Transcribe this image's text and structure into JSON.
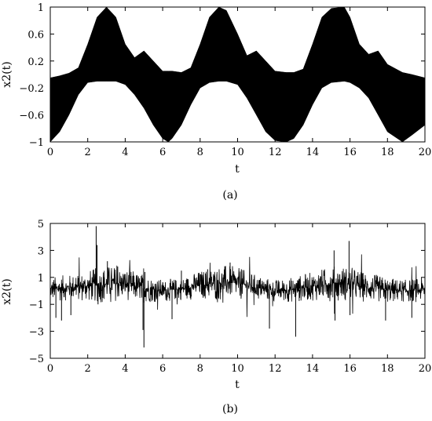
{
  "chart_data": [
    {
      "type": "line",
      "caption": "(a)",
      "xlabel": "t",
      "ylabel": "x2(t)",
      "xlim": [
        0,
        20
      ],
      "ylim": [
        -1,
        1
      ],
      "xticks": [
        0,
        2,
        4,
        6,
        8,
        10,
        12,
        14,
        16,
        18,
        20
      ],
      "yticks": [
        1,
        0.6,
        0.2,
        -0.2,
        -0.6,
        -1
      ],
      "ytick_labels": [
        "1",
        "0.6",
        "0.2",
        "−0.2",
        "−0.6",
        "−1"
      ],
      "grid": false,
      "color": "#000000",
      "signal": {
        "description_type": "dense oscillation filling envelope",
        "envelope_t": [
          0,
          0.5,
          1.0,
          1.5,
          2.0,
          2.5,
          3.0,
          3.5,
          4.0,
          4.5,
          5.0,
          5.5,
          6.0,
          6.3,
          6.5,
          7.0,
          7.5,
          8.0,
          8.5,
          9.0,
          9.4,
          10.0,
          10.5,
          11.0,
          11.5,
          12.0,
          12.6,
          13.0,
          13.5,
          14.0,
          14.5,
          15.0,
          15.7,
          16.0,
          16.5,
          17.0,
          17.5,
          18.0,
          18.8,
          19.3,
          20.0
        ],
        "envelope_upper": [
          -0.05,
          -0.02,
          0.02,
          0.1,
          0.45,
          0.85,
          1.0,
          0.85,
          0.45,
          0.25,
          0.35,
          0.2,
          0.05,
          0.05,
          0.05,
          0.03,
          0.1,
          0.45,
          0.85,
          1.0,
          0.95,
          0.6,
          0.28,
          0.35,
          0.2,
          0.05,
          0.03,
          0.03,
          0.08,
          0.45,
          0.85,
          0.98,
          1.0,
          0.85,
          0.45,
          0.3,
          0.35,
          0.15,
          0.03,
          0.0,
          -0.05
        ],
        "envelope_lower": [
          -1.0,
          -0.85,
          -0.6,
          -0.3,
          -0.12,
          -0.1,
          -0.1,
          -0.1,
          -0.15,
          -0.3,
          -0.5,
          -0.75,
          -0.95,
          -1.0,
          -0.95,
          -0.75,
          -0.45,
          -0.2,
          -0.12,
          -0.1,
          -0.1,
          -0.15,
          -0.35,
          -0.6,
          -0.85,
          -0.98,
          -1.0,
          -0.95,
          -0.75,
          -0.45,
          -0.2,
          -0.12,
          -0.1,
          -0.12,
          -0.2,
          -0.35,
          -0.6,
          -0.85,
          -1.0,
          -0.9,
          -0.75
        ]
      }
    },
    {
      "type": "line",
      "caption": "(b)",
      "xlabel": "t",
      "ylabel": "x2(t)",
      "xlim": [
        0,
        20
      ],
      "ylim": [
        -5,
        5
      ],
      "xticks": [
        0,
        2,
        4,
        6,
        8,
        10,
        12,
        14,
        16,
        18,
        20
      ],
      "yticks": [
        5,
        3,
        1,
        -1,
        -3,
        -5
      ],
      "ytick_labels": [
        "5",
        "3",
        "1",
        "−1",
        "−3",
        "−5"
      ],
      "grid": false,
      "color": "#000000",
      "signal": {
        "description_type": "noisy signal with spikes",
        "baseline_t": [
          0,
          1,
          2,
          3,
          3.5,
          4,
          5,
          6,
          7,
          8,
          9,
          9.5,
          10,
          11,
          12,
          13,
          14,
          15,
          15.5,
          16,
          17,
          18,
          19,
          20
        ],
        "baseline_y": [
          0.1,
          0.25,
          0.35,
          0.5,
          0.55,
          0.5,
          0.2,
          0.0,
          0.15,
          0.45,
          0.6,
          0.65,
          0.55,
          0.25,
          0.0,
          0.1,
          0.35,
          0.55,
          0.6,
          0.5,
          0.25,
          0.05,
          0.0,
          0.1
        ],
        "noise_amplitude_t": [
          0,
          1,
          2,
          3,
          4,
          5,
          6,
          7,
          8,
          9,
          10,
          11,
          12,
          13,
          14,
          15,
          16,
          17,
          18,
          19,
          20
        ],
        "noise_amplitude": [
          0.8,
          0.8,
          1.0,
          1.2,
          1.0,
          0.9,
          0.7,
          0.7,
          0.9,
          1.1,
          1.0,
          0.8,
          0.7,
          0.8,
          0.9,
          1.1,
          1.1,
          0.9,
          0.8,
          0.7,
          0.8
        ],
        "spikes": [
          {
            "t": 2.45,
            "y": 4.8
          },
          {
            "t": 2.5,
            "y": 3.4
          },
          {
            "t": 2.55,
            "y": -1.0
          },
          {
            "t": 3.05,
            "y": 2.2
          },
          {
            "t": 3.6,
            "y": 1.8
          },
          {
            "t": 5.0,
            "y": -4.2
          },
          {
            "t": 4.95,
            "y": -2.9
          },
          {
            "t": 5.05,
            "y": 1.4
          },
          {
            "t": 7.0,
            "y": 1.5
          },
          {
            "t": 9.6,
            "y": 2.1
          },
          {
            "t": 10.2,
            "y": 1.6
          },
          {
            "t": 11.7,
            "y": -2.8
          },
          {
            "t": 13.1,
            "y": -3.4
          },
          {
            "t": 13.3,
            "y": 0.9
          },
          {
            "t": 15.15,
            "y": 3.0
          },
          {
            "t": 15.2,
            "y": -2.2
          },
          {
            "t": 15.95,
            "y": 3.7
          },
          {
            "t": 16.0,
            "y": -1.8
          },
          {
            "t": 17.9,
            "y": -2.2
          },
          {
            "t": 19.3,
            "y": -2.0
          },
          {
            "t": 0.3,
            "y": -2.0
          },
          {
            "t": 0.6,
            "y": -2.2
          },
          {
            "t": 1.1,
            "y": -1.8
          },
          {
            "t": 6.5,
            "y": -2.1
          },
          {
            "t": 8.4,
            "y": 1.6
          }
        ]
      }
    }
  ]
}
